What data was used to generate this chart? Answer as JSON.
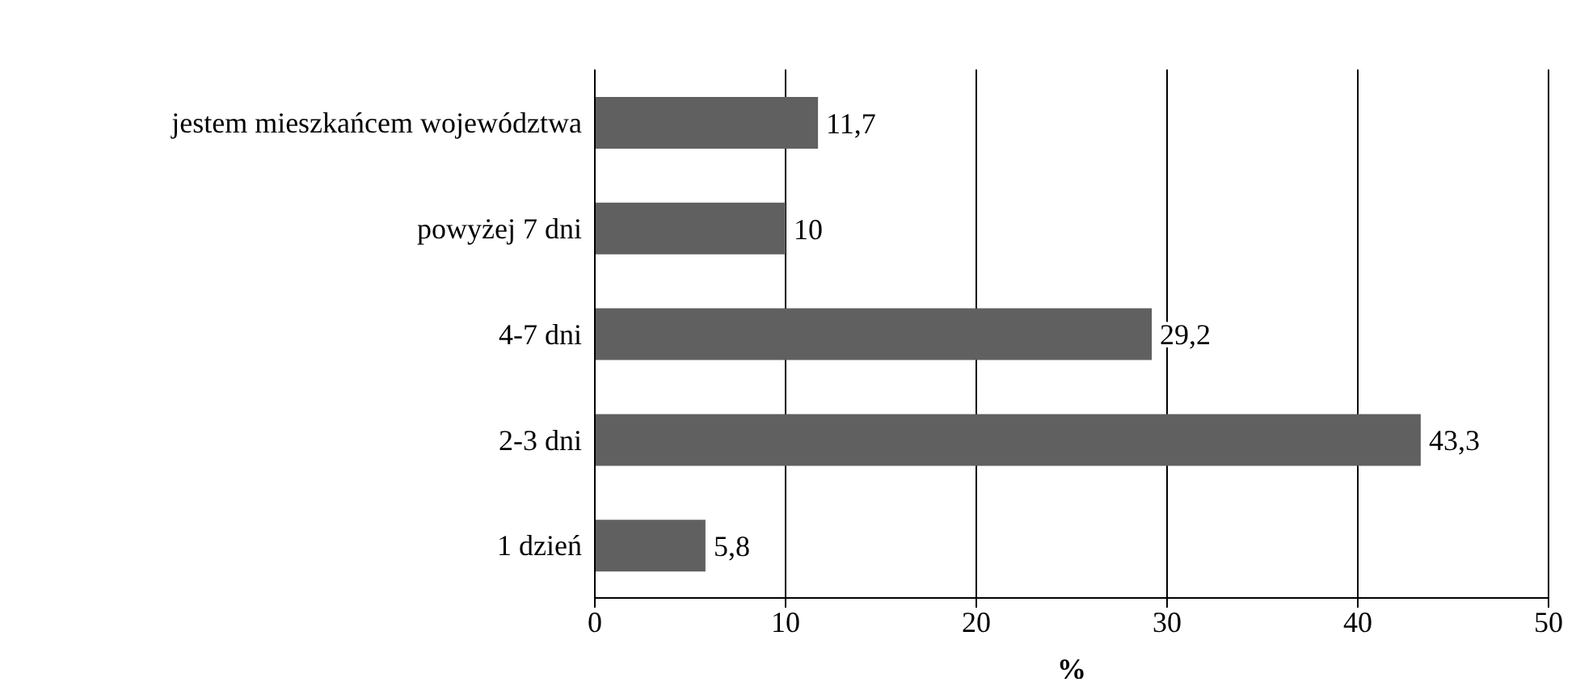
{
  "chart_data": {
    "type": "bar",
    "orientation": "horizontal",
    "categories": [
      "jestem mieszkańcem województwa",
      "powyżej 7 dni",
      "4-7 dni",
      "2-3 dni",
      "1 dzień"
    ],
    "values": [
      11.7,
      10,
      29.2,
      43.3,
      5.8
    ],
    "color": "#606060",
    "xlim": [
      0,
      50
    ],
    "xticks": [
      0,
      10,
      20,
      30,
      40,
      50
    ],
    "xlabel": "%",
    "grid": "x",
    "value_labels": [
      "11,7",
      "10",
      "29,2",
      "43,3",
      "5,8"
    ],
    "legend": false
  }
}
